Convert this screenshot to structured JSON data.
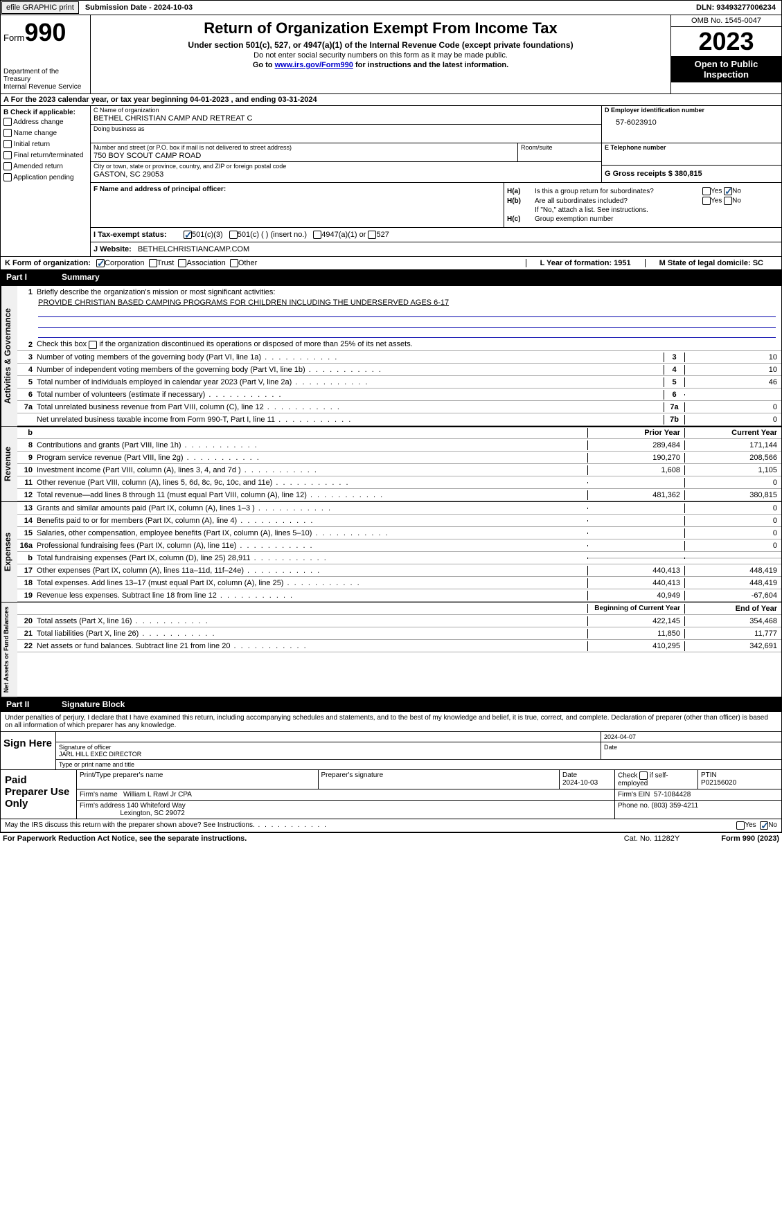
{
  "topbar": {
    "efile": "efile GRAPHIC print",
    "submission": "Submission Date - 2024-10-03",
    "dln": "DLN: 93493277006234"
  },
  "header": {
    "form_prefix": "Form",
    "form_number": "990",
    "dept": "Department of the Treasury",
    "irs": "Internal Revenue Service",
    "title": "Return of Organization Exempt From Income Tax",
    "subtitle": "Under section 501(c), 527, or 4947(a)(1) of the Internal Revenue Code (except private foundations)",
    "warn": "Do not enter social security numbers on this form as it may be made public.",
    "goto_pre": "Go to ",
    "goto_link": "www.irs.gov/Form990",
    "goto_post": " for instructions and the latest information.",
    "omb": "OMB No. 1545-0047",
    "year": "2023",
    "inspection": "Open to Public Inspection"
  },
  "period": "For the 2023 calendar year, or tax year beginning 04-01-2023   , and ending 03-31-2024",
  "box_b": {
    "label": "B Check if applicable:",
    "items": [
      "Address change",
      "Name change",
      "Initial return",
      "Final return/terminated",
      "Amended return",
      "Application pending"
    ]
  },
  "box_c": {
    "name_label": "C Name of organization",
    "name": "BETHEL CHRISTIAN CAMP AND RETREAT C",
    "dba_label": "Doing business as",
    "addr_label": "Number and street (or P.O. box if mail is not delivered to street address)",
    "addr": "750 BOY SCOUT CAMP ROAD",
    "room_label": "Room/suite",
    "city_label": "City or town, state or province, country, and ZIP or foreign postal code",
    "city": "GASTON, SC  29053"
  },
  "box_d": {
    "label": "D Employer identification number",
    "ein": "57-6023910"
  },
  "box_e": {
    "label": "E Telephone number"
  },
  "box_g": {
    "label": "G Gross receipts $ 380,815"
  },
  "box_f": {
    "label": "F  Name and address of principal officer:"
  },
  "box_h": {
    "ha_lbl": "H(a)",
    "ha_txt": "Is this a group return for subordinates?",
    "hb_lbl": "H(b)",
    "hb_txt": "Are all subordinates included?",
    "hb_note": "If \"No,\" attach a list. See instructions.",
    "hc_lbl": "H(c)",
    "hc_txt": "Group exemption number",
    "yes": "Yes",
    "no": "No"
  },
  "tax_status": {
    "label": "I     Tax-exempt status:",
    "opt1": "501(c)(3)",
    "opt2": "501(c) (  ) (insert no.)",
    "opt3": "4947(a)(1) or",
    "opt4": "527"
  },
  "website": {
    "label": "J     Website:",
    "val": "BETHELCHRISTIANCAMP.COM"
  },
  "box_k": {
    "label": "K Form of organization:",
    "opts": [
      "Corporation",
      "Trust",
      "Association",
      "Other"
    ]
  },
  "box_l": {
    "label": "L Year of formation: 1951"
  },
  "box_m": {
    "label": "M State of legal domicile: SC"
  },
  "part1": {
    "num": "Part I",
    "title": "Summary",
    "l1": "Briefly describe the organization's mission or most significant activities:",
    "mission": "PROVIDE CHRISTIAN BASED CAMPING PROGRAMS FOR CHILDREN INCLUDING THE UNDERSERVED AGES 6-17",
    "l2": "Check this box        if the organization discontinued its operations or disposed of more than 25% of its net assets.",
    "rows_gov": [
      {
        "n": "3",
        "t": "Number of voting members of the governing body (Part VI, line 1a)",
        "b": "3",
        "v": "10"
      },
      {
        "n": "4",
        "t": "Number of independent voting members of the governing body (Part VI, line 1b)",
        "b": "4",
        "v": "10"
      },
      {
        "n": "5",
        "t": "Total number of individuals employed in calendar year 2023 (Part V, line 2a)",
        "b": "5",
        "v": "46"
      },
      {
        "n": "6",
        "t": "Total number of volunteers (estimate if necessary)",
        "b": "6",
        "v": ""
      },
      {
        "n": "7a",
        "t": "Total unrelated business revenue from Part VIII, column (C), line 12",
        "b": "7a",
        "v": "0"
      },
      {
        "n": "",
        "t": "Net unrelated business taxable income from Form 990-T, Part I, line 11",
        "b": "7b",
        "v": "0"
      }
    ],
    "hdr_prior": "Prior Year",
    "hdr_curr": "Current Year",
    "rows_rev": [
      {
        "n": "8",
        "t": "Contributions and grants (Part VIII, line 1h)",
        "p": "289,484",
        "c": "171,144"
      },
      {
        "n": "9",
        "t": "Program service revenue (Part VIII, line 2g)",
        "p": "190,270",
        "c": "208,566"
      },
      {
        "n": "10",
        "t": "Investment income (Part VIII, column (A), lines 3, 4, and 7d )",
        "p": "1,608",
        "c": "1,105"
      },
      {
        "n": "11",
        "t": "Other revenue (Part VIII, column (A), lines 5, 6d, 8c, 9c, 10c, and 11e)",
        "p": "",
        "c": "0"
      },
      {
        "n": "12",
        "t": "Total revenue—add lines 8 through 11 (must equal Part VIII, column (A), line 12)",
        "p": "481,362",
        "c": "380,815"
      }
    ],
    "rows_exp": [
      {
        "n": "13",
        "t": "Grants and similar amounts paid (Part IX, column (A), lines 1–3 )",
        "p": "",
        "c": "0"
      },
      {
        "n": "14",
        "t": "Benefits paid to or for members (Part IX, column (A), line 4)",
        "p": "",
        "c": "0"
      },
      {
        "n": "15",
        "t": "Salaries, other compensation, employee benefits (Part IX, column (A), lines 5–10)",
        "p": "",
        "c": "0"
      },
      {
        "n": "16a",
        "t": "Professional fundraising fees (Part IX, column (A), line 11e)",
        "p": "",
        "c": "0"
      },
      {
        "n": "b",
        "t": "Total fundraising expenses (Part IX, column (D), line 25) 28,911",
        "p": "shade",
        "c": "shade"
      },
      {
        "n": "17",
        "t": "Other expenses (Part IX, column (A), lines 11a–11d, 11f–24e)",
        "p": "440,413",
        "c": "448,419"
      },
      {
        "n": "18",
        "t": "Total expenses. Add lines 13–17 (must equal Part IX, column (A), line 25)",
        "p": "440,413",
        "c": "448,419"
      },
      {
        "n": "19",
        "t": "Revenue less expenses. Subtract line 18 from line 12",
        "p": "40,949",
        "c": "-67,604"
      }
    ],
    "hdr_beg": "Beginning of Current Year",
    "hdr_end": "End of Year",
    "rows_net": [
      {
        "n": "20",
        "t": "Total assets (Part X, line 16)",
        "p": "422,145",
        "c": "354,468"
      },
      {
        "n": "21",
        "t": "Total liabilities (Part X, line 26)",
        "p": "11,850",
        "c": "11,777"
      },
      {
        "n": "22",
        "t": "Net assets or fund balances. Subtract line 21 from line 20",
        "p": "410,295",
        "c": "342,691"
      }
    ]
  },
  "part2": {
    "num": "Part II",
    "title": "Signature Block",
    "decl": "Under penalties of perjury, I declare that I have examined this return, including accompanying schedules and statements, and to the best of my knowledge and belief, it is true, correct, and complete. Declaration of preparer (other than officer) is based on all information of which preparer has any knowledge.",
    "sign_here": "Sign Here",
    "sig_officer": "Signature of officer",
    "officer_name": "JARL HILL  EXEC DIRECTOR",
    "type_print": "Type or print name and title",
    "date_lbl": "Date",
    "date_val": "2024-04-07",
    "paid": "Paid Preparer Use Only",
    "prep_name_lbl": "Print/Type preparer's name",
    "prep_sig_lbl": "Preparer's signature",
    "prep_date": "Date\n2024-10-03",
    "check_se": "Check         if self-employed",
    "ptin_lbl": "PTIN",
    "ptin": "P02156020",
    "firm_name_lbl": "Firm's name",
    "firm_name": "William L Rawl Jr CPA",
    "firm_ein_lbl": "Firm's EIN",
    "firm_ein": "57-1084428",
    "firm_addr_lbl": "Firm's address",
    "firm_addr1": "140 Whiteford Way",
    "firm_addr2": "Lexington, SC  29072",
    "phone_lbl": "Phone no.",
    "phone": "(803) 359-4211",
    "discuss": "May the IRS discuss this return with the preparer shown above? See Instructions."
  },
  "footer": {
    "paperwork": "For Paperwork Reduction Act Notice, see the separate instructions.",
    "cat": "Cat. No. 11282Y",
    "form": "Form 990 (2023)"
  }
}
